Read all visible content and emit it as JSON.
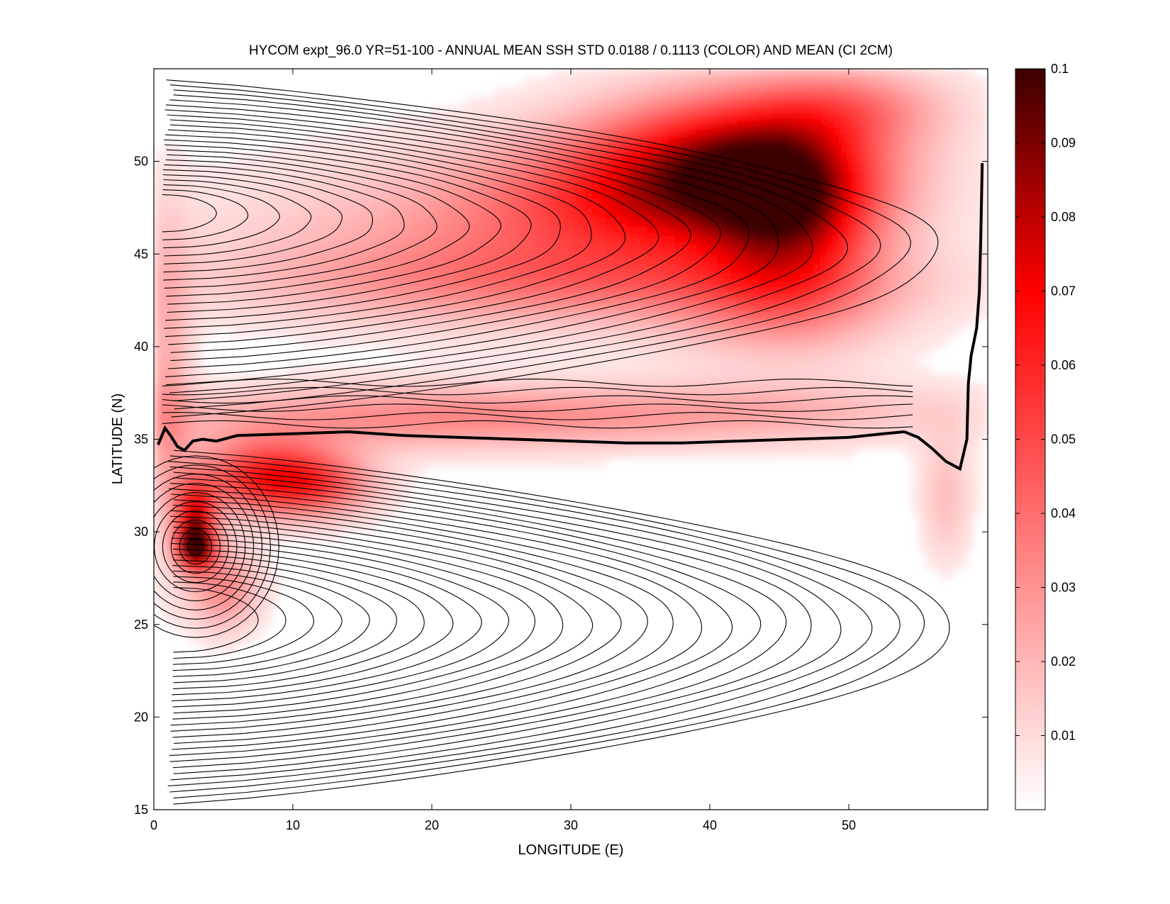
{
  "chart_data": {
    "type": "heatmap",
    "title": "HYCOM expt_96.0 YR=51-100 - ANNUAL MEAN SSH STD 0.0188 / 0.1113 (COLOR) AND MEAN (CI 2CM)",
    "xlabel": "LONGITUDE (E)",
    "ylabel": "LATITUDE (N)",
    "xlim": [
      0,
      60
    ],
    "ylim": [
      15,
      55
    ],
    "x_ticks": [
      0,
      10,
      20,
      30,
      40,
      50
    ],
    "y_ticks": [
      15,
      20,
      25,
      30,
      35,
      40,
      45,
      50
    ],
    "colorbar": {
      "min": 0,
      "max": 0.1,
      "ticks": [
        0.01,
        0.02,
        0.03,
        0.04,
        0.05,
        0.06,
        0.07,
        0.08,
        0.09,
        0.1
      ],
      "tick_labels": [
        "0.01",
        "0.02",
        "0.03",
        "0.04",
        "0.05",
        "0.06",
        "0.07",
        "0.08",
        "0.09",
        "0.1"
      ],
      "colormap": [
        "#ffffff",
        "#ff0000",
        "#3a0000"
      ]
    },
    "std_field": [
      {
        "lon": 42,
        "lat": 50,
        "value": 0.065,
        "sx": 7,
        "sy": 2.6
      },
      {
        "lon": 46,
        "lat": 47,
        "value": 0.05,
        "sx": 4,
        "sy": 3
      },
      {
        "lon": 36,
        "lat": 48,
        "value": 0.038,
        "sx": 9,
        "sy": 2.5
      },
      {
        "lon": 25,
        "lat": 46,
        "value": 0.02,
        "sx": 14,
        "sy": 3
      },
      {
        "lon": 30,
        "lat": 43.5,
        "value": 0.022,
        "sx": 16,
        "sy": 1.5
      },
      {
        "lon": 50,
        "lat": 53,
        "value": 0.025,
        "sx": 5,
        "sy": 1.5
      },
      {
        "lon": 45,
        "lat": 42,
        "value": 0.02,
        "sx": 6,
        "sy": 2
      },
      {
        "lon": 20,
        "lat": 36.2,
        "value": 0.03,
        "sx": 14,
        "sy": 1.2
      },
      {
        "lon": 45,
        "lat": 36.5,
        "value": 0.015,
        "sx": 10,
        "sy": 1.2
      },
      {
        "lon": 57,
        "lat": 32,
        "value": 0.015,
        "sx": 1.3,
        "sy": 2.5
      },
      {
        "lon": 3,
        "lat": 29.2,
        "value": 0.1,
        "sx": 0.9,
        "sy": 0.8
      },
      {
        "lon": 3,
        "lat": 31,
        "value": 0.06,
        "sx": 1,
        "sy": 1.2
      },
      {
        "lon": 8,
        "lat": 33,
        "value": 0.055,
        "sx": 3.5,
        "sy": 1.4
      },
      {
        "lon": 12,
        "lat": 32.5,
        "value": 0.03,
        "sx": 3,
        "sy": 1.2
      },
      {
        "lon": 5,
        "lat": 27,
        "value": 0.03,
        "sx": 1.8,
        "sy": 1.6
      },
      {
        "lon": 1,
        "lat": 38,
        "value": 0.02,
        "sx": 1.2,
        "sy": 6
      }
    ],
    "zero_contour": [
      [
        0.3,
        34.7
      ],
      [
        0.8,
        35.6
      ],
      [
        1.2,
        35.2
      ],
      [
        1.7,
        34.6
      ],
      [
        2.2,
        34.4
      ],
      [
        2.8,
        34.9
      ],
      [
        3.5,
        35.0
      ],
      [
        4.5,
        34.9
      ],
      [
        6,
        35.2
      ],
      [
        10,
        35.3
      ],
      [
        14,
        35.4
      ],
      [
        18,
        35.2
      ],
      [
        22,
        35.1
      ],
      [
        26,
        35.0
      ],
      [
        30,
        34.9
      ],
      [
        34,
        34.8
      ],
      [
        38,
        34.8
      ],
      [
        42,
        34.9
      ],
      [
        46,
        35.0
      ],
      [
        50,
        35.1
      ],
      [
        52.5,
        35.3
      ],
      [
        54,
        35.4
      ],
      [
        55,
        35.1
      ],
      [
        56,
        34.5
      ],
      [
        57,
        33.8
      ],
      [
        58,
        33.4
      ],
      [
        58.5,
        35
      ],
      [
        58.6,
        38
      ],
      [
        58.8,
        39.5
      ],
      [
        59.2,
        41
      ],
      [
        59.4,
        43
      ],
      [
        59.5,
        46
      ],
      [
        59.6,
        49.9
      ]
    ]
  }
}
